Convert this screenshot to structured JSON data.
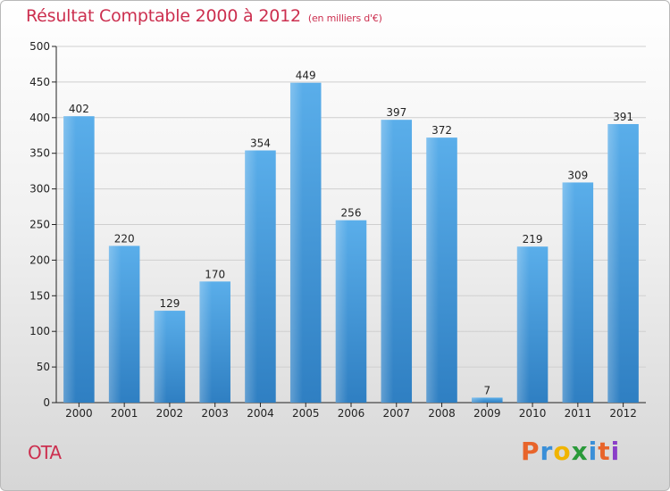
{
  "chart_data": {
    "type": "bar",
    "title": "Résultat Comptable 2000 à 2012",
    "subtitle": "(en milliers d'€)",
    "categories": [
      "2000",
      "2001",
      "2002",
      "2003",
      "2004",
      "2005",
      "2006",
      "2007",
      "2008",
      "2009",
      "2010",
      "2011",
      "2012"
    ],
    "values": [
      402,
      220,
      129,
      170,
      354,
      449,
      256,
      397,
      372,
      7,
      219,
      309,
      391
    ],
    "ylim": [
      0,
      500
    ],
    "yticks": [
      0,
      50,
      100,
      150,
      200,
      250,
      300,
      350,
      400,
      450,
      500
    ],
    "xlabel": "",
    "ylabel": "",
    "grid": true,
    "bar_color": "#4a9fe0"
  },
  "footer": {
    "commune": "OTA",
    "logo_letters": [
      "P",
      "r",
      "o",
      "x",
      "i",
      "t",
      "i"
    ],
    "logo_colors": [
      "#e8642a",
      "#3a8fd8",
      "#f0b400",
      "#2a9a3a",
      "#3a8fd8",
      "#e8642a",
      "#8a3ec8"
    ]
  },
  "colors": {
    "title": "#cc2f4f",
    "grid": "#cfcfcf",
    "axis": "#222222"
  }
}
